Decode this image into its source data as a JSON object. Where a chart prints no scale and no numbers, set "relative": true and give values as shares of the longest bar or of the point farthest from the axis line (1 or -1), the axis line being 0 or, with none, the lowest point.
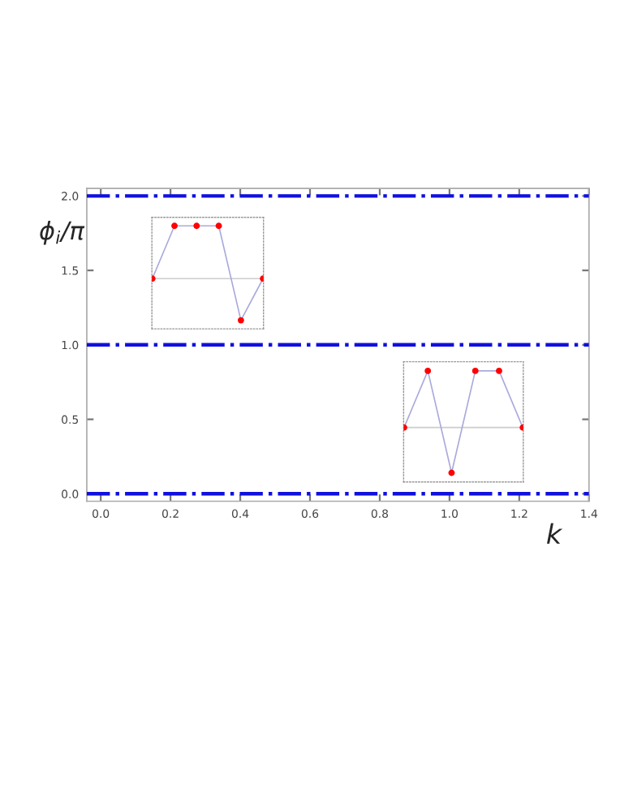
{
  "chart_data": [
    {
      "type": "line",
      "xlabel": "k",
      "ylabel": "ϕ$_{i}$/π",
      "xlim": [
        -0.04,
        1.4
      ],
      "ylim": [
        -0.05,
        2.05
      ],
      "xticks": [
        {
          "value": 0,
          "label": "0.0"
        },
        0.2,
        0.4,
        0.6,
        0.8,
        {
          "value": 1,
          "label": "1.0"
        },
        1.2,
        1.4
      ],
      "yticks": [
        {
          "value": 0,
          "label": "0.0"
        },
        0.5,
        {
          "value": 1,
          "label": "1.0"
        },
        1.5,
        {
          "value": 2,
          "label": "2.0"
        }
      ],
      "ref_lines": [
        {
          "axis": "y",
          "value": 0,
          "color": "#1010e0",
          "line_style": "dashdot"
        },
        {
          "axis": "y",
          "value": 1,
          "color": "#1010e0",
          "line_style": "dashdot"
        },
        {
          "axis": "y",
          "value": 2,
          "color": "#1010e0",
          "line_style": "dashdot"
        }
      ]
    },
    {
      "type": "line",
      "relative": true,
      "categories": [
        null,
        null,
        null,
        null,
        null,
        null
      ],
      "marker": "circle",
      "series": [
        {
          "color": "#aaaadd",
          "colors": [
            "#ff0000",
            "#ff0000",
            "#ff0000",
            "#ff0000",
            "#ff0000",
            "#ff0000"
          ],
          "values": [
            0,
            1,
            1,
            1,
            -0.79,
            0
          ]
        }
      ]
    },
    {
      "type": "line",
      "relative": true,
      "categories": [
        null,
        null,
        null,
        null,
        null,
        null
      ],
      "marker": "circle",
      "series": [
        {
          "color": "#aaaadd",
          "colors": [
            "#ff0000",
            "#ff0000",
            "#ff0000",
            "#ff0000",
            "#ff0000",
            "#ff0000"
          ],
          "values": [
            0,
            1,
            -0.8,
            1,
            1,
            0
          ]
        }
      ]
    }
  ]
}
